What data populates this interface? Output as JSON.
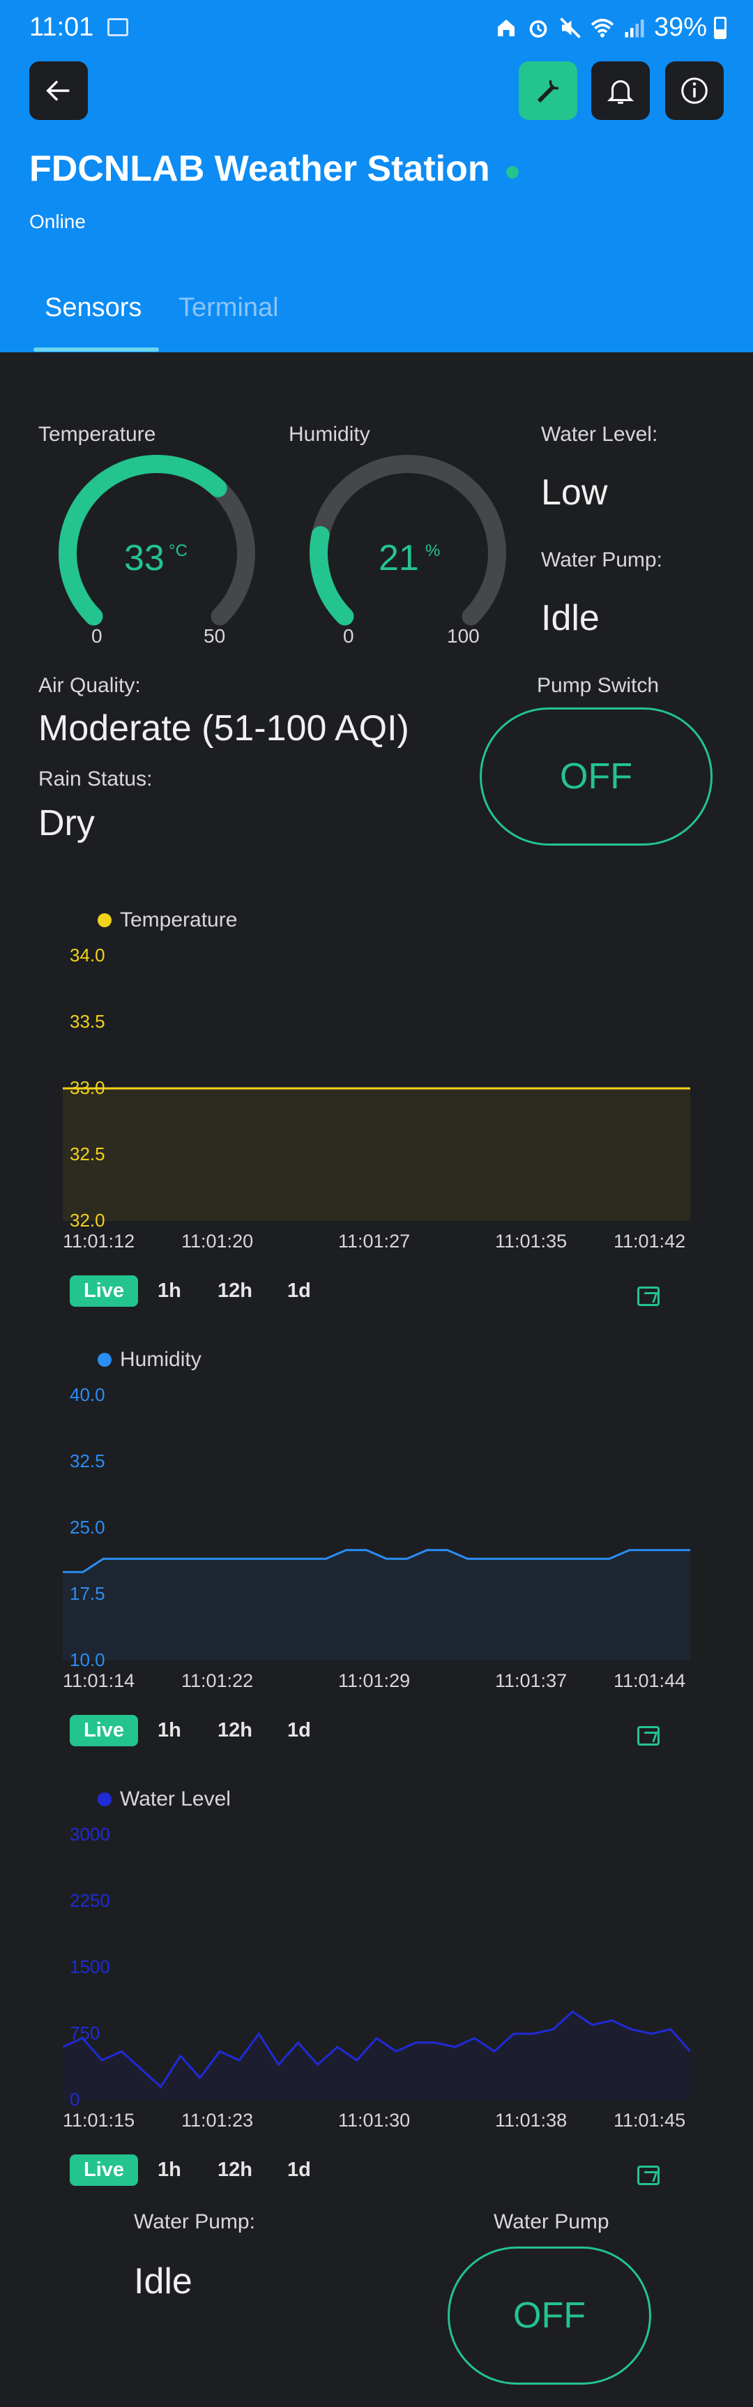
{
  "status_bar": {
    "time": "11:01",
    "battery": "39%"
  },
  "header": {
    "title": "FDCNLAB Weather Station",
    "status": "Online"
  },
  "tabs": [
    {
      "label": "Sensors"
    },
    {
      "label": "Terminal"
    }
  ],
  "gauges": {
    "temperature": {
      "label": "Temperature",
      "value": "33",
      "unit": "°C",
      "min": "0",
      "max": "50",
      "fraction": 0.66
    },
    "humidity": {
      "label": "Humidity",
      "value": "21",
      "unit": "%",
      "min": "0",
      "max": "100",
      "fraction": 0.21
    }
  },
  "water_level": {
    "label": "Water Level:",
    "value": "Low"
  },
  "water_pump": {
    "label": "Water Pump:",
    "value": "Idle"
  },
  "pump_switch": {
    "label": "Pump Switch",
    "state": "OFF"
  },
  "air_quality": {
    "label": "Air Quality:",
    "value": "Moderate (51-100 AQI)"
  },
  "rain_status": {
    "label": "Rain Status:",
    "value": "Dry"
  },
  "range_buttons": [
    "Live",
    "1h",
    "12h",
    "1d"
  ],
  "bottom": {
    "pump_label": "Water Pump:",
    "pump_value": "Idle",
    "switch_label": "Water Pump",
    "switch_state": "OFF"
  },
  "chart_data": [
    {
      "type": "line",
      "series": [
        {
          "name": "Temperature",
          "color": "#f2d21b",
          "values": [
            33.0,
            33.0,
            33.0,
            33.0,
            33.0,
            33.0,
            33.0
          ]
        }
      ],
      "y_ticks": [
        "34.0",
        "33.5",
        "33.0",
        "32.5",
        "32.0"
      ],
      "ylim": [
        32.0,
        34.0
      ],
      "x_ticks": [
        "11:01:12",
        "11:01:20",
        "11:01:27",
        "11:01:35",
        "11:01:42"
      ],
      "tick_color": "#f2d21b"
    },
    {
      "type": "line",
      "series": [
        {
          "name": "Humidity",
          "color": "#2a8ef5",
          "values": [
            20,
            20,
            21.5,
            21.5,
            21.5,
            21.5,
            21.5,
            21.5,
            21.5,
            21.5,
            21.5,
            21.5,
            21.5,
            21.5,
            22.5,
            22.5,
            21.5,
            21.5,
            22.5,
            22.5,
            21.5,
            21.5,
            21.5,
            21.5,
            21.5,
            21.5,
            21.5,
            21.5,
            22.5,
            22.5,
            22.5,
            22.5
          ]
        }
      ],
      "y_ticks": [
        "40.0",
        "32.5",
        "25.0",
        "17.5",
        "10.0"
      ],
      "ylim": [
        10.0,
        40.0
      ],
      "x_ticks": [
        "11:01:14",
        "11:01:22",
        "11:01:29",
        "11:01:37",
        "11:01:44"
      ],
      "tick_color": "#2a8ef5"
    },
    {
      "type": "line",
      "series": [
        {
          "name": "Water Level",
          "color": "#1f2bd6",
          "values": [
            600,
            700,
            450,
            550,
            350,
            150,
            500,
            250,
            550,
            450,
            750,
            400,
            650,
            400,
            600,
            450,
            700,
            550,
            650,
            650,
            600,
            700,
            550,
            750,
            750,
            800,
            1000,
            850,
            900,
            800,
            750,
            800,
            550
          ]
        }
      ],
      "y_ticks": [
        "3000",
        "2250",
        "1500",
        "750",
        "0"
      ],
      "ylim": [
        0,
        3000
      ],
      "x_ticks": [
        "11:01:15",
        "11:01:23",
        "11:01:30",
        "11:01:38",
        "11:01:45"
      ],
      "tick_color": "#1f2bd6"
    }
  ]
}
